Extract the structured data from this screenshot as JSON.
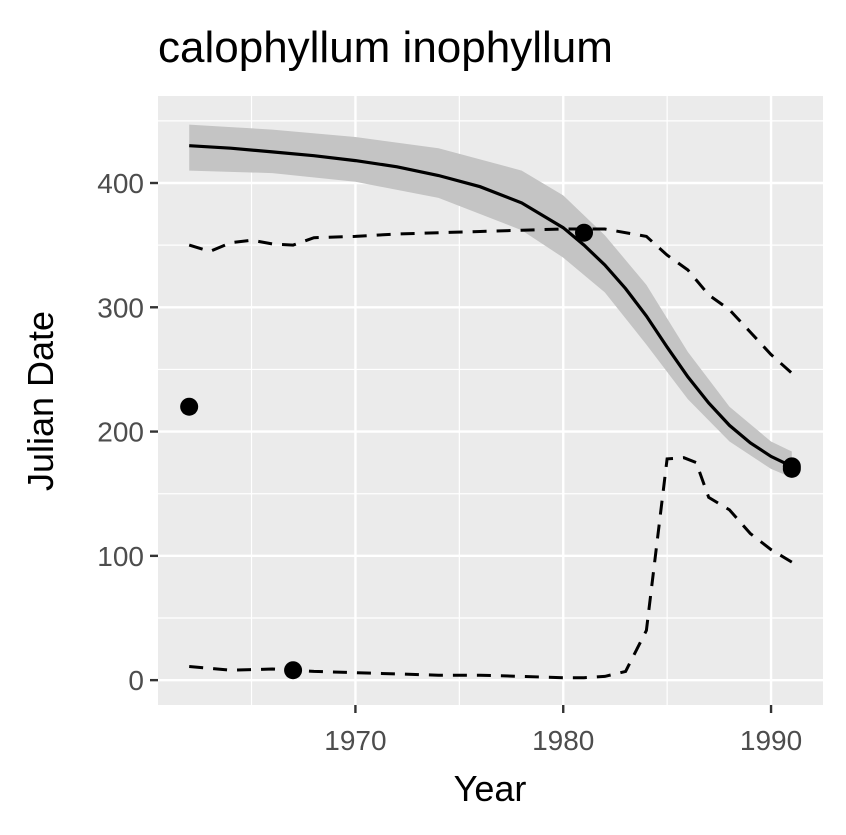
{
  "chart_data": {
    "type": "scatter",
    "title": "calophyllum inophyllum",
    "xlabel": "Year",
    "ylabel": "Julian Date",
    "xlim": [
      1960.5,
      1992.5
    ],
    "ylim": [
      -20,
      470
    ],
    "x_ticks": [
      1970,
      1980,
      1990
    ],
    "x_minor_ticks": [
      1965,
      1975,
      1985
    ],
    "y_ticks": [
      0,
      100,
      200,
      300,
      400
    ],
    "y_minor_ticks": [
      50,
      150,
      250,
      350,
      450
    ],
    "grid": true,
    "legend": "none",
    "colors": {
      "panel": "#ebebeb",
      "grid": "#ffffff",
      "ribbon": "#c4c4c4",
      "line": "#000000",
      "points": "#000000"
    },
    "points": [
      {
        "x": 1962,
        "y": 220
      },
      {
        "x": 1967,
        "y": 8
      },
      {
        "x": 1981,
        "y": 360
      },
      {
        "x": 1991,
        "y": 172
      },
      {
        "x": 1991,
        "y": 170
      }
    ],
    "fit_line": {
      "x": [
        1962,
        1964,
        1966,
        1968,
        1970,
        1972,
        1974,
        1976,
        1978,
        1980,
        1981,
        1982,
        1983,
        1984,
        1985,
        1986,
        1987,
        1988,
        1989,
        1990,
        1991
      ],
      "y": [
        430,
        428,
        425,
        422,
        418,
        413,
        406,
        397,
        384,
        364,
        350,
        334,
        315,
        293,
        268,
        244,
        223,
        205,
        191,
        180,
        172
      ]
    },
    "confidence_band": {
      "x": [
        1962,
        1966,
        1970,
        1974,
        1978,
        1980,
        1982,
        1984,
        1986,
        1988,
        1990,
        1991
      ],
      "upper": [
        447,
        443,
        437,
        428,
        410,
        390,
        358,
        318,
        264,
        220,
        192,
        184
      ],
      "lower": [
        410,
        408,
        401,
        388,
        362,
        340,
        312,
        270,
        226,
        192,
        170,
        163
      ]
    },
    "upper_dashed": {
      "x": [
        1962,
        1963,
        1964,
        1965,
        1966,
        1967,
        1968,
        1970,
        1972,
        1974,
        1976,
        1978,
        1980,
        1982,
        1984,
        1985,
        1986,
        1987,
        1988,
        1989,
        1990,
        1991
      ],
      "y": [
        350,
        345,
        352,
        354,
        351,
        350,
        356,
        357,
        359,
        360,
        361,
        362,
        363,
        363,
        357,
        342,
        330,
        310,
        298,
        280,
        262,
        247
      ]
    },
    "lower_dashed": {
      "x": [
        1962,
        1964,
        1966,
        1968,
        1970,
        1972,
        1974,
        1976,
        1978,
        1980,
        1981,
        1982,
        1983,
        1984,
        1985,
        1985.8,
        1986.4,
        1987,
        1988,
        1989,
        1990,
        1991
      ],
      "y": [
        11,
        8,
        9,
        7,
        6,
        5,
        4,
        4,
        3,
        2,
        2,
        3,
        7,
        40,
        178,
        179,
        175,
        147,
        137,
        118,
        105,
        95
      ]
    }
  }
}
